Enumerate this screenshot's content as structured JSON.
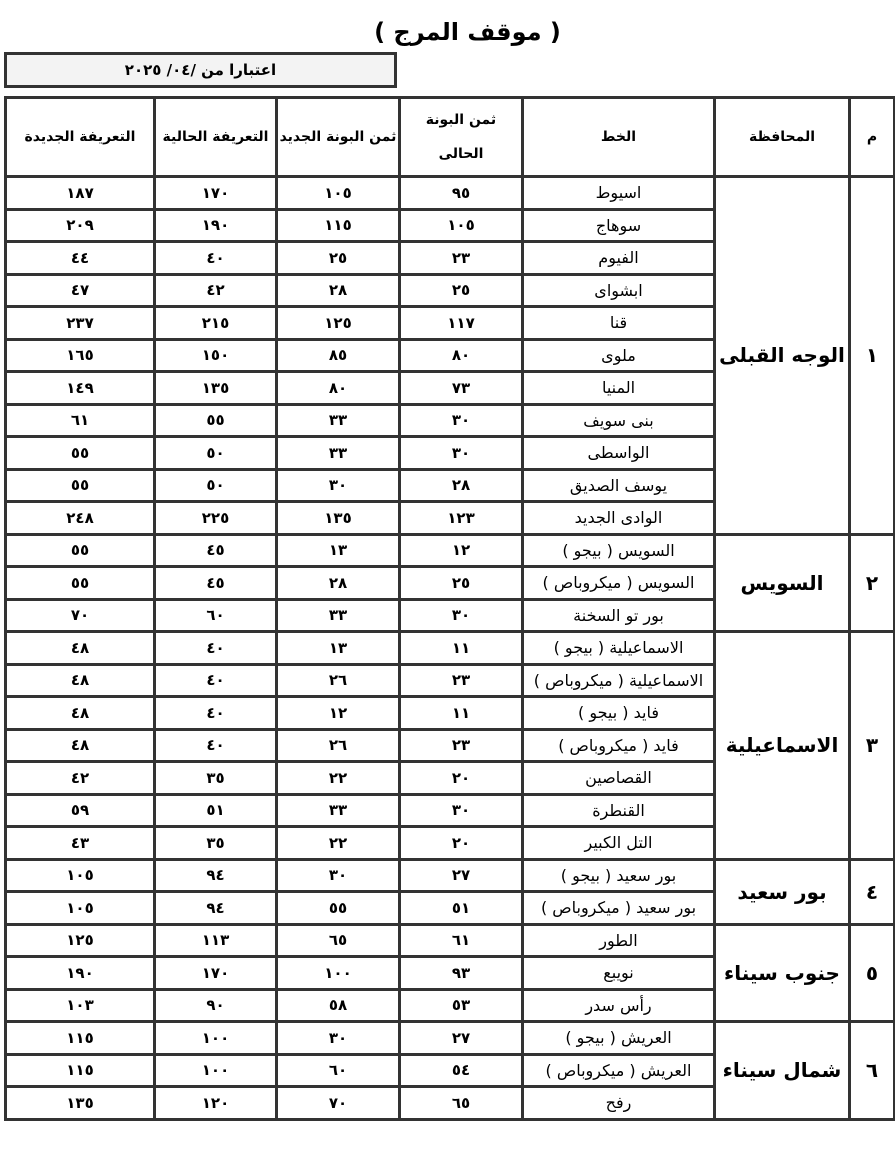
{
  "title": "( موقف المرج )",
  "effective_date": "اعتبارا من   /٠٤/ ٢٠٢٥",
  "headers": {
    "no": "م",
    "governorate": "المحافظة",
    "line": "الخط",
    "ticket_current": "ثمن البونة الحالى",
    "ticket_new": "ثمن البونة الجديد",
    "fare_current": "التعريفة الحالية",
    "fare_new": "التعريفة الجديدة"
  },
  "groups": [
    {
      "no": "١",
      "governorate": "الوجه القبلى",
      "rows": [
        {
          "line": "اسيوط",
          "ticket_current": "٩٥",
          "ticket_new": "١٠٥",
          "fare_current": "١٧٠",
          "fare_new": "١٨٧"
        },
        {
          "line": "سوهاج",
          "ticket_current": "١٠٥",
          "ticket_new": "١١٥",
          "fare_current": "١٩٠",
          "fare_new": "٢٠٩"
        },
        {
          "line": "الفيوم",
          "ticket_current": "٢٣",
          "ticket_new": "٢٥",
          "fare_current": "٤٠",
          "fare_new": "٤٤"
        },
        {
          "line": "ابشواى",
          "ticket_current": "٢٥",
          "ticket_new": "٢٨",
          "fare_current": "٤٢",
          "fare_new": "٤٧"
        },
        {
          "line": "قنا",
          "ticket_current": "١١٧",
          "ticket_new": "١٢٥",
          "fare_current": "٢١٥",
          "fare_new": "٢٣٧"
        },
        {
          "line": "ملوى",
          "ticket_current": "٨٠",
          "ticket_new": "٨٥",
          "fare_current": "١٥٠",
          "fare_new": "١٦٥"
        },
        {
          "line": "المنيا",
          "ticket_current": "٧٣",
          "ticket_new": "٨٠",
          "fare_current": "١٣٥",
          "fare_new": "١٤٩"
        },
        {
          "line": "بنى سويف",
          "ticket_current": "٣٠",
          "ticket_new": "٣٣",
          "fare_current": "٥٥",
          "fare_new": "٦١"
        },
        {
          "line": "الواسطى",
          "ticket_current": "٣٠",
          "ticket_new": "٣٣",
          "fare_current": "٥٠",
          "fare_new": "٥٥"
        },
        {
          "line": "يوسف الصديق",
          "ticket_current": "٢٨",
          "ticket_new": "٣٠",
          "fare_current": "٥٠",
          "fare_new": "٥٥"
        },
        {
          "line": "الوادى الجديد",
          "ticket_current": "١٢٣",
          "ticket_new": "١٣٥",
          "fare_current": "٢٢٥",
          "fare_new": "٢٤٨"
        }
      ]
    },
    {
      "no": "٢",
      "governorate": "السويس",
      "rows": [
        {
          "line": "السويس ( بيجو )",
          "ticket_current": "١٢",
          "ticket_new": "١٣",
          "fare_current": "٤٥",
          "fare_new": "٥٥"
        },
        {
          "line": "السويس ( ميكروباص )",
          "ticket_current": "٢٥",
          "ticket_new": "٢٨",
          "fare_current": "٤٥",
          "fare_new": "٥٥"
        },
        {
          "line": "بور تو السخنة",
          "ticket_current": "٣٠",
          "ticket_new": "٣٣",
          "fare_current": "٦٠",
          "fare_new": "٧٠"
        }
      ]
    },
    {
      "no": "٣",
      "governorate": "الاسماعيلية",
      "rows": [
        {
          "line": "الاسماعيلية ( بيجو )",
          "ticket_current": "١١",
          "ticket_new": "١٣",
          "fare_current": "٤٠",
          "fare_new": "٤٨"
        },
        {
          "line": "الاسماعيلية ( ميكروباص )",
          "ticket_current": "٢٣",
          "ticket_new": "٢٦",
          "fare_current": "٤٠",
          "fare_new": "٤٨"
        },
        {
          "line": "فايد ( بيجو )",
          "ticket_current": "١١",
          "ticket_new": "١٢",
          "fare_current": "٤٠",
          "fare_new": "٤٨"
        },
        {
          "line": "فايد ( ميكروباص )",
          "ticket_current": "٢٣",
          "ticket_new": "٢٦",
          "fare_current": "٤٠",
          "fare_new": "٤٨"
        },
        {
          "line": "القصاصين",
          "ticket_current": "٢٠",
          "ticket_new": "٢٢",
          "fare_current": "٣٥",
          "fare_new": "٤٢"
        },
        {
          "line": "القنطرة",
          "ticket_current": "٣٠",
          "ticket_new": "٣٣",
          "fare_current": "٥١",
          "fare_new": "٥٩"
        },
        {
          "line": "التل الكبير",
          "ticket_current": "٢٠",
          "ticket_new": "٢٢",
          "fare_current": "٣٥",
          "fare_new": "٤٣"
        }
      ]
    },
    {
      "no": "٤",
      "governorate": "بور سعيد",
      "rows": [
        {
          "line": "بور سعيد ( بيجو )",
          "ticket_current": "٢٧",
          "ticket_new": "٣٠",
          "fare_current": "٩٤",
          "fare_new": "١٠٥"
        },
        {
          "line": "بور سعيد ( ميكروباص )",
          "ticket_current": "٥١",
          "ticket_new": "٥٥",
          "fare_current": "٩٤",
          "fare_new": "١٠٥"
        }
      ]
    },
    {
      "no": "٥",
      "governorate": "جنوب سيناء",
      "rows": [
        {
          "line": "الطور",
          "ticket_current": "٦١",
          "ticket_new": "٦٥",
          "fare_current": "١١٣",
          "fare_new": "١٢٥"
        },
        {
          "line": "نويبع",
          "ticket_current": "٩٣",
          "ticket_new": "١٠٠",
          "fare_current": "١٧٠",
          "fare_new": "١٩٠"
        },
        {
          "line": "رأس سدر",
          "ticket_current": "٥٣",
          "ticket_new": "٥٨",
          "fare_current": "٩٠",
          "fare_new": "١٠٣"
        }
      ]
    },
    {
      "no": "٦",
      "governorate": "شمال سيناء",
      "rows": [
        {
          "line": "العريش ( بيجو )",
          "ticket_current": "٢٧",
          "ticket_new": "٣٠",
          "fare_current": "١٠٠",
          "fare_new": "١١٥"
        },
        {
          "line": "العريش ( ميكروباص )",
          "ticket_current": "٥٤",
          "ticket_new": "٦٠",
          "fare_current": "١٠٠",
          "fare_new": "١١٥"
        },
        {
          "line": "رفح",
          "ticket_current": "٦٥",
          "ticket_new": "٧٠",
          "fare_current": "١٢٠",
          "fare_new": "١٣٥"
        }
      ]
    }
  ]
}
